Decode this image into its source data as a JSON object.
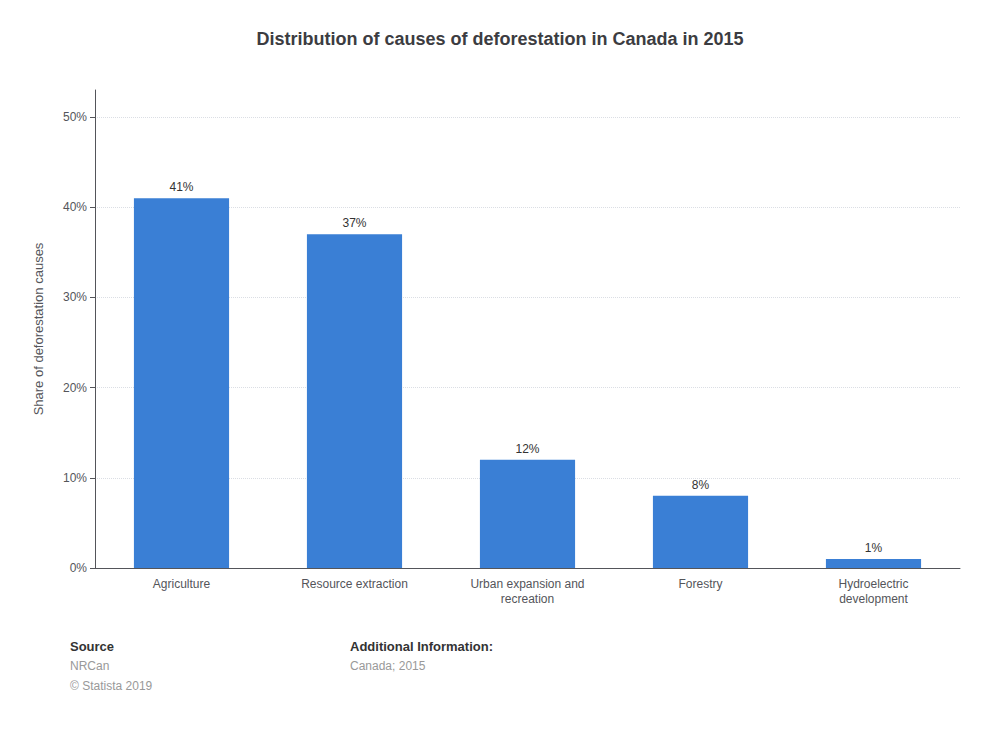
{
  "chart_data": {
    "type": "bar",
    "title": "Distribution of causes of deforestation in Canada in 2015",
    "categories": [
      "Agriculture",
      "Resource extraction",
      "Urban expansion and\nrecreation",
      "Forestry",
      "Hydroelectric\ndevelopment"
    ],
    "values": [
      41,
      37,
      12,
      8,
      1
    ],
    "value_labels": [
      "41%",
      "37%",
      "12%",
      "8%",
      "1%"
    ],
    "data_labels": true,
    "color": "#3a7fd5",
    "ylabel": "Share of deforestation causes",
    "ylim": [
      0,
      53
    ],
    "yticks": [
      {
        "value": 0,
        "label": "0%"
      },
      {
        "value": 10,
        "label": "10%"
      },
      {
        "value": 20,
        "label": "20%"
      },
      {
        "value": 30,
        "label": "30%"
      },
      {
        "value": 40,
        "label": "40%"
      },
      {
        "value": 50,
        "label": "50%"
      }
    ],
    "grid": true,
    "annotations": [
      [
        "Source",
        "NRCan",
        "© Statista 2019"
      ],
      [
        "Additional Information:",
        "Canada; 2015"
      ]
    ]
  }
}
